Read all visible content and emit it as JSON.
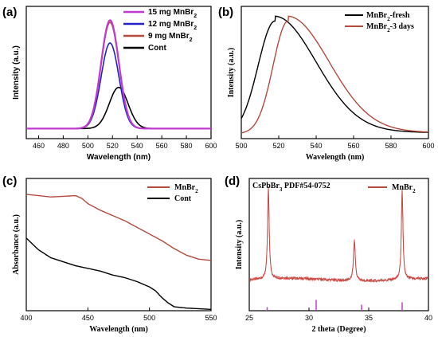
{
  "chart_data": [
    {
      "panel": "(a)",
      "type": "line",
      "xlabel": "Wavelength (nm)",
      "ylabel": "Intensity (a.u.)",
      "xlim": [
        450,
        600
      ],
      "xticks": [
        460,
        480,
        500,
        520,
        540,
        560,
        580,
        600
      ],
      "ylim": [
        0,
        1.05
      ],
      "legend_position": "top-right",
      "series": [
        {
          "name": "15 mg MnBr2",
          "color": "#c03ad0",
          "peak": 518,
          "fwhm": 17,
          "amp": 1.0
        },
        {
          "name": "12 mg MnBr2",
          "color": "#2222c8",
          "peak": 518,
          "fwhm": 17,
          "amp": 0.79
        },
        {
          "name": "9  mg MnBr2",
          "color": "#b24a3e",
          "peak": 518,
          "fwhm": 17,
          "amp": 0.98
        },
        {
          "name": "Cont",
          "color": "#000000",
          "peak": 525,
          "fwhm": 18,
          "amp": 0.38
        }
      ]
    },
    {
      "panel": "(b)",
      "type": "line",
      "xlabel": "Wavelength (nm)",
      "ylabel": "Intensity (a.u.)",
      "xlim": [
        500,
        600
      ],
      "xticks": [
        500,
        520,
        540,
        560,
        580,
        600
      ],
      "ylim": [
        0,
        1.08
      ],
      "legend_position": "top-right",
      "series": [
        {
          "name": "MnBr2-fresh",
          "color": "#000000",
          "peak": 518,
          "rise_width": 9,
          "decay_width": 22,
          "amp": 1.0
        },
        {
          "name": "MnBr2-3 days",
          "color": "#b24a3e",
          "peak": 525,
          "rise_width": 8,
          "decay_width": 22,
          "amp": 1.0
        }
      ]
    },
    {
      "panel": "(c)",
      "type": "line",
      "xlabel": "Wavelength (nm)",
      "ylabel": "Absorbance (a.u.)",
      "xlim": [
        400,
        550
      ],
      "xticks": [
        400,
        450,
        500,
        550
      ],
      "ylim": [
        0,
        1.0
      ],
      "legend_position": "top-right",
      "series": [
        {
          "name": "MnBr2",
          "color": "#b24a3e",
          "x": [
            400,
            410,
            420,
            430,
            440,
            445,
            450,
            460,
            470,
            480,
            490,
            500,
            510,
            520,
            530,
            540,
            550
          ],
          "y": [
            0.88,
            0.87,
            0.86,
            0.865,
            0.87,
            0.85,
            0.81,
            0.76,
            0.72,
            0.68,
            0.63,
            0.58,
            0.53,
            0.47,
            0.42,
            0.39,
            0.38
          ]
        },
        {
          "name": "Cont",
          "color": "#000000",
          "x": [
            400,
            410,
            420,
            430,
            440,
            450,
            460,
            470,
            480,
            490,
            500,
            505,
            510,
            515,
            520,
            530,
            540,
            550
          ],
          "y": [
            0.55,
            0.46,
            0.4,
            0.37,
            0.34,
            0.32,
            0.3,
            0.27,
            0.25,
            0.22,
            0.18,
            0.15,
            0.1,
            0.06,
            0.03,
            0.02,
            0.015,
            0.01
          ]
        }
      ]
    },
    {
      "panel": "(d)",
      "type": "line",
      "xlabel": "2 theta (Degree)",
      "ylabel": "Intensity (a.u.)",
      "xlim": [
        25,
        40
      ],
      "xticks": [
        25,
        30,
        35,
        40
      ],
      "ylim": [
        0,
        1.1
      ],
      "legend_position": "top-right",
      "reference_label": "CsPbBr3 PDF#54-0752",
      "reference_color": "#c03ad0",
      "reference_peaks": [
        {
          "x": 26.5,
          "h": 0.15
        },
        {
          "x": 30.6,
          "h": 0.45
        },
        {
          "x": 34.4,
          "h": 0.25
        },
        {
          "x": 37.8,
          "h": 0.35
        }
      ],
      "series": [
        {
          "name": "MnBr2",
          "color": "#b24a3e",
          "baseline": 0.12,
          "peaks": [
            {
              "x": 26.6,
              "h": 0.85,
              "w": 0.08
            },
            {
              "x": 33.8,
              "h": 0.38,
              "w": 0.09
            },
            {
              "x": 37.8,
              "h": 0.83,
              "w": 0.08
            }
          ]
        }
      ]
    }
  ]
}
